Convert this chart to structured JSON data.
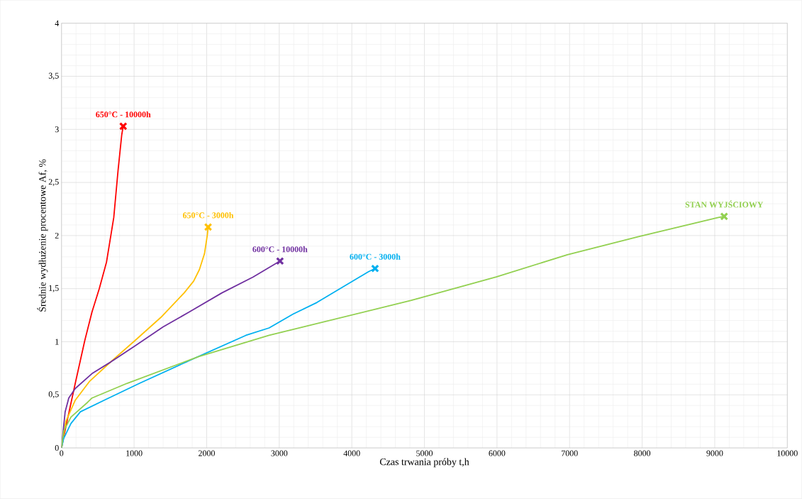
{
  "chart_data": {
    "type": "line",
    "xlabel": "Czas trwania próby t,h",
    "ylabel": "Średnie wydłużenie procentowe Af, %",
    "xlim": [
      0,
      10000
    ],
    "xticks": [
      0,
      1000,
      2000,
      3000,
      4000,
      5000,
      6000,
      7000,
      8000,
      9000,
      10000
    ],
    "ylim": [
      0,
      4
    ],
    "yticks": [
      {
        "value": 0,
        "label": "0"
      },
      {
        "value": 0.5,
        "label": "0,5"
      },
      {
        "value": 1,
        "label": "1"
      },
      {
        "value": 1.5,
        "label": "1,5"
      },
      {
        "value": 2,
        "label": "2"
      },
      {
        "value": 2.5,
        "label": "2,5"
      },
      {
        "value": 3,
        "label": "3"
      },
      {
        "value": 3.5,
        "label": "3,5"
      },
      {
        "value": 4,
        "label": "4"
      }
    ],
    "grid": true,
    "legend": false,
    "marker": "none",
    "line_style": "solid",
    "series": [
      {
        "name": "650°C - 10000h",
        "color": "#ff0000",
        "x": [
          0,
          60,
          190,
          320,
          420,
          520,
          620,
          720,
          780,
          830,
          850
        ],
        "values": [
          0,
          0.2,
          0.61,
          1.01,
          1.28,
          1.5,
          1.75,
          2.17,
          2.62,
          2.95,
          3.03
        ]
      },
      {
        "name": "650°C - 3000h",
        "color": "#ffc000",
        "x": [
          0,
          60,
          190,
          390,
          710,
          1010,
          1370,
          1690,
          1820,
          1900,
          1970,
          2010,
          2020
        ],
        "values": [
          0,
          0.25,
          0.45,
          0.63,
          0.83,
          1.01,
          1.23,
          1.46,
          1.57,
          1.68,
          1.83,
          2.01,
          2.08
        ]
      },
      {
        "name": "600°C - 10000h",
        "color": "#7030a0",
        "x": [
          0,
          50,
          100,
          190,
          420,
          680,
          1010,
          1400,
          1760,
          2210,
          2640,
          3010
        ],
        "values": [
          0,
          0.34,
          0.47,
          0.56,
          0.7,
          0.81,
          0.96,
          1.14,
          1.28,
          1.46,
          1.61,
          1.76
        ]
      },
      {
        "name": "600°C - 3000h",
        "color": "#00b0f0",
        "x": [
          0,
          30,
          130,
          260,
          590,
          1080,
          1720,
          2540,
          2860,
          3190,
          3520,
          4230,
          4320
        ],
        "values": [
          0,
          0.09,
          0.23,
          0.34,
          0.45,
          0.61,
          0.81,
          1.06,
          1.13,
          1.26,
          1.37,
          1.66,
          1.69
        ]
      },
      {
        "name": "STAN WYJŚCIOWY",
        "color": "#92d050",
        "x": [
          0,
          30,
          130,
          360,
          420,
          910,
          1890,
          2860,
          4820,
          5990,
          6970,
          7950,
          9050,
          9130
        ],
        "values": [
          0,
          0.16,
          0.29,
          0.43,
          0.47,
          0.61,
          0.86,
          1.06,
          1.39,
          1.61,
          1.82,
          1.99,
          2.17,
          2.18
        ]
      },
      {
        "type": "scatter",
        "marker": "cross",
        "colors": [
          "#ff0000",
          "#ffc000",
          "#7030a0",
          "#00b0f0",
          "#92d050"
        ],
        "x": [
          850,
          2020,
          3010,
          4320,
          9130
        ],
        "values": [
          3.03,
          2.08,
          1.76,
          1.69,
          2.18
        ]
      }
    ]
  }
}
